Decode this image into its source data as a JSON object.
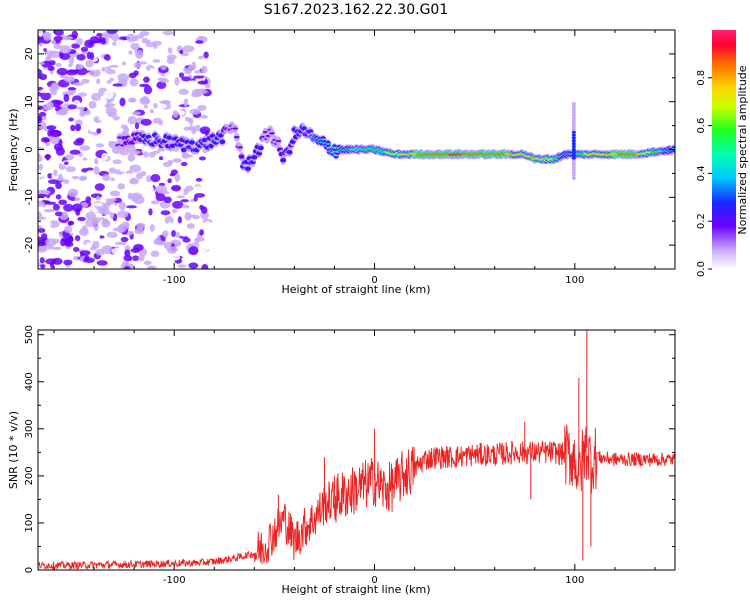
{
  "figure_title": "S167.2023.162.22.30.G01",
  "chart_data": [
    {
      "type": "heatmap",
      "title": "S167.2023.162.22.30.G01",
      "xlabel": "Height of straight line (km)",
      "ylabel": "Frequency (Hz)",
      "xlim": [
        -168,
        150
      ],
      "ylim": [
        -25,
        25
      ],
      "x_ticks": [
        -100,
        0,
        100
      ],
      "x_tick_labels": [
        "-100",
        "0",
        "100"
      ],
      "y_ticks": [
        -20,
        -10,
        0,
        10,
        20
      ],
      "y_tick_labels": [
        "-20",
        "-10",
        "0",
        "10",
        "20"
      ],
      "colorbar": {
        "label": "Normalized spectral amplitude",
        "range": [
          0,
          1
        ],
        "ticks": [
          0.0,
          0.2,
          0.4,
          0.6,
          0.8
        ],
        "tick_labels": [
          "0.0",
          "0.2",
          "0.4",
          "0.6",
          "0.8"
        ]
      },
      "ridge": {
        "x": [
          -128,
          -110,
          -95,
          -85,
          -75,
          -70,
          -65,
          -58,
          -52,
          -45,
          -40,
          -35,
          -30,
          -25,
          -20,
          -10,
          0,
          10,
          20,
          40,
          60,
          75,
          80,
          90,
          95,
          100,
          110,
          130,
          150
        ],
        "freq": [
          2,
          2,
          1,
          1,
          3,
          5,
          -4,
          0,
          4,
          -2,
          3,
          4,
          2,
          1,
          0,
          0,
          0,
          -1,
          -1,
          -1,
          -1,
          -1,
          -2,
          -2,
          -1,
          -1,
          -1,
          -1,
          0
        ],
        "amplitude": [
          0.25,
          0.3,
          0.3,
          0.35,
          0.3,
          0.2,
          0.3,
          0.3,
          0.2,
          0.3,
          0.35,
          0.35,
          0.4,
          0.45,
          0.5,
          0.55,
          0.65,
          0.7,
          0.85,
          0.95,
          0.9,
          0.8,
          0.85,
          0.7,
          0.4,
          0.55,
          0.8,
          0.9,
          0.4
        ]
      }
    },
    {
      "type": "line",
      "xlabel": "Height of straight line (km)",
      "ylabel": "SNR (10 * v/v)",
      "xlim": [
        -168,
        150
      ],
      "ylim": [
        0,
        510
      ],
      "x_ticks": [
        -100,
        0,
        100
      ],
      "x_tick_labels": [
        "-100",
        "0",
        "100"
      ],
      "y_ticks": [
        0,
        100,
        200,
        300,
        400,
        500
      ],
      "y_tick_labels": [
        "0",
        "100",
        "200",
        "300",
        "400",
        "500"
      ],
      "series": [
        {
          "name": "SNR",
          "color": "#ee2222",
          "x": [
            -168,
            -150,
            -120,
            -100,
            -90,
            -80,
            -70,
            -60,
            -55,
            -50,
            -45,
            -40,
            -35,
            -30,
            -25,
            -20,
            -15,
            -10,
            -5,
            0,
            5,
            10,
            15,
            20,
            25,
            30,
            40,
            50,
            60,
            70,
            75,
            80,
            90,
            95,
            100,
            102,
            104,
            106,
            108,
            110,
            120,
            130,
            140,
            150
          ],
          "y": [
            10,
            10,
            12,
            14,
            15,
            18,
            25,
            35,
            50,
            80,
            110,
            60,
            90,
            110,
            140,
            150,
            160,
            170,
            180,
            190,
            170,
            180,
            205,
            215,
            235,
            240,
            240,
            245,
            245,
            250,
            250,
            250,
            250,
            245,
            240,
            200,
            240,
            260,
            230,
            240,
            235,
            235,
            235,
            235
          ],
          "spikes": [
            {
              "x": -48,
              "y": 160
            },
            {
              "x": -25,
              "y": 240
            },
            {
              "x": -20,
              "y": 200
            },
            {
              "x": 0,
              "y": 300
            },
            {
              "x": 75,
              "y": 315
            },
            {
              "x": 78,
              "y": 150
            },
            {
              "x": 102,
              "y": 408
            },
            {
              "x": 104,
              "y": 20
            },
            {
              "x": 106,
              "y": 510
            },
            {
              "x": 108,
              "y": 50
            }
          ]
        }
      ]
    }
  ]
}
